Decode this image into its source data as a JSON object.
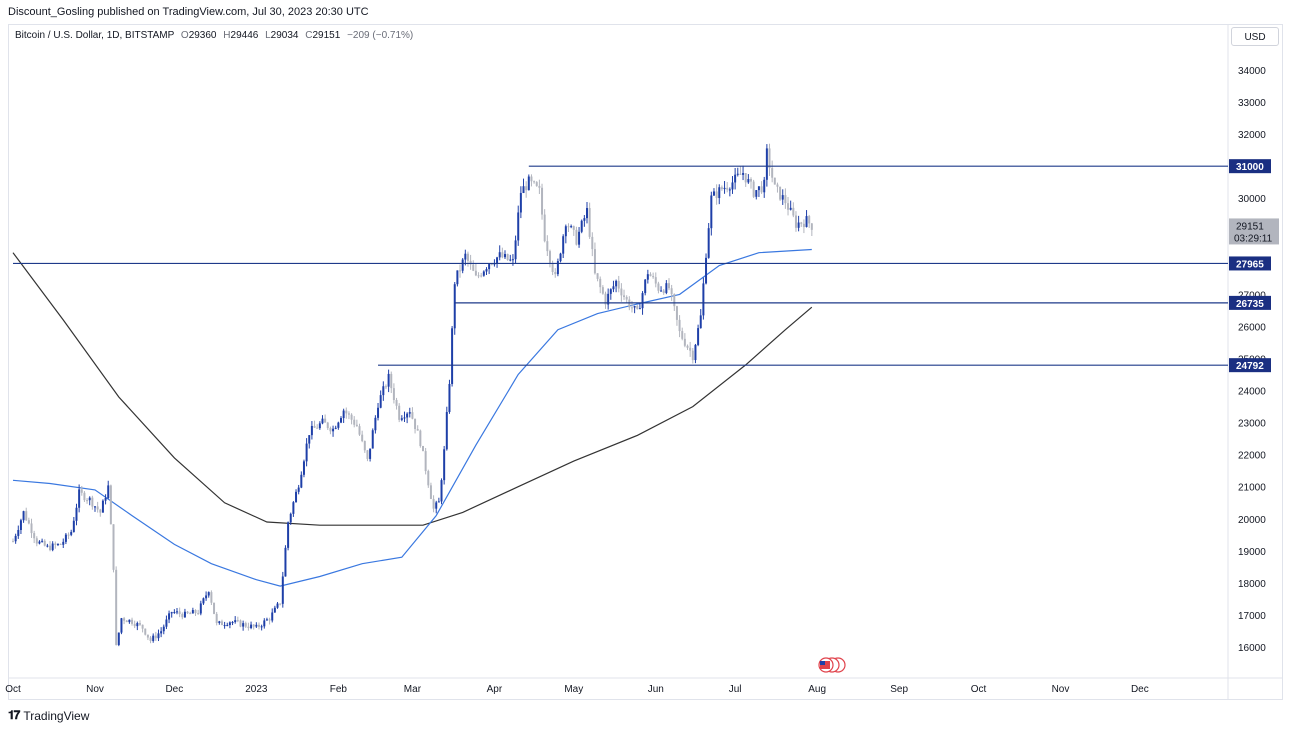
{
  "header": {
    "publisher_text": "Discount_Gosling published on TradingView.com, Jul 30, 2023 20:30 UTC"
  },
  "symbol": {
    "name": "Bitcoin / U.S. Dollar, 1D, BITSTAMP",
    "open_label": "O",
    "open": "29360",
    "high_label": "H",
    "high": "29446",
    "low_label": "L",
    "low": "29034",
    "close_label": "C",
    "close": "29151",
    "change": "−209 (−0.71%)"
  },
  "currency": "USD",
  "footer": {
    "logo_text": "TradingView"
  },
  "colors": {
    "up": "#1e3fa8",
    "down": "#b2b5be",
    "ma_short": "#3a78e0",
    "ma_long": "#333333",
    "level_line": "#1e3a8a",
    "level_label_bg": "#1a2f82"
  },
  "chart_data": {
    "type": "candlestick",
    "symbol": "BTCUSD",
    "timeframe": "1D",
    "y_axis": {
      "ticks": [
        16000,
        17000,
        18000,
        19000,
        20000,
        21000,
        22000,
        23000,
        24000,
        25000,
        26000,
        27000,
        28000,
        29000,
        30000,
        31000,
        32000,
        33000,
        34000
      ],
      "tick_labels": [
        "16000",
        "17000",
        "18000",
        "19000",
        "20000",
        "21000",
        "22000",
        "23000",
        "24000",
        "25000",
        "26000",
        "27000",
        "28000",
        "29000",
        "30000",
        "31000",
        "32000",
        "33000",
        "34000"
      ],
      "range": [
        15300,
        35000
      ]
    },
    "x_axis": {
      "labels": [
        "Oct",
        "Nov",
        "Dec",
        "2023",
        "Feb",
        "Mar",
        "Apr",
        "May",
        "Jun",
        "Jul",
        "Aug",
        "Sep",
        "Oct",
        "Nov",
        "Dec"
      ],
      "dates": [
        "2022-10-01",
        "2022-11-01",
        "2022-12-01",
        "2023-01-01",
        "2023-02-01",
        "2023-03-01",
        "2023-04-01",
        "2023-05-01",
        "2023-06-01",
        "2023-07-01",
        "2023-08-01",
        "2023-09-01",
        "2023-10-01",
        "2023-11-01",
        "2023-12-01"
      ]
    },
    "price_levels": [
      {
        "value": 31000,
        "label": "31000",
        "start": "2023-04-14"
      },
      {
        "value": 27965,
        "label": "27965",
        "start": "2022-10-01"
      },
      {
        "value": 26735,
        "label": "26735",
        "start": "2023-03-17"
      },
      {
        "value": 24792,
        "label": "24792",
        "start": "2023-02-16"
      }
    ],
    "last_price": {
      "value": 29151,
      "label": "29151",
      "countdown": "03:29:11"
    },
    "closes": [
      [
        "2022-10-01",
        19300
      ],
      [
        "2022-10-05",
        20200
      ],
      [
        "2022-10-10",
        19300
      ],
      [
        "2022-10-14",
        19100
      ],
      [
        "2022-10-19",
        19200
      ],
      [
        "2022-10-23",
        19600
      ],
      [
        "2022-10-26",
        20800
      ],
      [
        "2022-10-30",
        20600
      ],
      [
        "2022-11-03",
        20200
      ],
      [
        "2022-11-06",
        21000
      ],
      [
        "2022-11-08",
        18500
      ],
      [
        "2022-11-09",
        16000
      ],
      [
        "2022-11-11",
        16900
      ],
      [
        "2022-11-15",
        16800
      ],
      [
        "2022-11-19",
        16600
      ],
      [
        "2022-11-22",
        16200
      ],
      [
        "2022-11-26",
        16500
      ],
      [
        "2022-11-30",
        17100
      ],
      [
        "2022-12-05",
        17000
      ],
      [
        "2022-12-10",
        17100
      ],
      [
        "2022-12-14",
        17800
      ],
      [
        "2022-12-17",
        16700
      ],
      [
        "2022-12-22",
        16800
      ],
      [
        "2022-12-27",
        16700
      ],
      [
        "2023-01-01",
        16600
      ],
      [
        "2023-01-06",
        16900
      ],
      [
        "2023-01-10",
        17400
      ],
      [
        "2023-01-13",
        19900
      ],
      [
        "2023-01-17",
        21100
      ],
      [
        "2023-01-21",
        22700
      ],
      [
        "2023-01-26",
        23000
      ],
      [
        "2023-01-30",
        22800
      ],
      [
        "2023-02-03",
        23400
      ],
      [
        "2023-02-08",
        22900
      ],
      [
        "2023-02-12",
        21800
      ],
      [
        "2023-02-16",
        23600
      ],
      [
        "2023-02-20",
        24400
      ],
      [
        "2023-02-24",
        23200
      ],
      [
        "2023-02-28",
        23400
      ],
      [
        "2023-03-04",
        22400
      ],
      [
        "2023-03-09",
        20300
      ],
      [
        "2023-03-11",
        20500
      ],
      [
        "2023-03-13",
        22100
      ],
      [
        "2023-03-15",
        24300
      ],
      [
        "2023-03-17",
        27400
      ],
      [
        "2023-03-21",
        28200
      ],
      [
        "2023-03-25",
        27500
      ],
      [
        "2023-03-30",
        28000
      ],
      [
        "2023-04-03",
        28200
      ],
      [
        "2023-04-08",
        28000
      ],
      [
        "2023-04-11",
        30200
      ],
      [
        "2023-04-14",
        30500
      ],
      [
        "2023-04-18",
        30200
      ],
      [
        "2023-04-20",
        28800
      ],
      [
        "2023-04-24",
        27500
      ],
      [
        "2023-04-28",
        29300
      ],
      [
        "2023-05-02",
        28700
      ],
      [
        "2023-05-06",
        29600
      ],
      [
        "2023-05-09",
        27600
      ],
      [
        "2023-05-13",
        26800
      ],
      [
        "2023-05-17",
        27400
      ],
      [
        "2023-05-21",
        26800
      ],
      [
        "2023-05-25",
        26400
      ],
      [
        "2023-05-29",
        27700
      ],
      [
        "2023-06-02",
        27200
      ],
      [
        "2023-06-06",
        27200
      ],
      [
        "2023-06-10",
        25800
      ],
      [
        "2023-06-15",
        25100
      ],
      [
        "2023-06-18",
        26300
      ],
      [
        "2023-06-20",
        28300
      ],
      [
        "2023-06-22",
        30000
      ],
      [
        "2023-06-26",
        30300
      ],
      [
        "2023-06-30",
        30500
      ],
      [
        "2023-07-04",
        30800
      ],
      [
        "2023-07-08",
        30200
      ],
      [
        "2023-07-12",
        30400
      ],
      [
        "2023-07-13",
        31400
      ],
      [
        "2023-07-16",
        30300
      ],
      [
        "2023-07-20",
        29900
      ],
      [
        "2023-07-24",
        29200
      ],
      [
        "2023-07-28",
        29300
      ],
      [
        "2023-07-30",
        29151
      ]
    ],
    "ma_short": [
      [
        "2022-10-01",
        21200
      ],
      [
        "2022-10-15",
        21100
      ],
      [
        "2022-11-01",
        20900
      ],
      [
        "2022-11-15",
        20100
      ],
      [
        "2022-12-01",
        19200
      ],
      [
        "2022-12-15",
        18600
      ],
      [
        "2023-01-01",
        18100
      ],
      [
        "2023-01-10",
        17900
      ],
      [
        "2023-01-25",
        18200
      ],
      [
        "2023-02-10",
        18600
      ],
      [
        "2023-02-25",
        18800
      ],
      [
        "2023-03-10",
        20100
      ],
      [
        "2023-03-25",
        22300
      ],
      [
        "2023-04-10",
        24500
      ],
      [
        "2023-04-25",
        25900
      ],
      [
        "2023-05-10",
        26400
      ],
      [
        "2023-05-25",
        26700
      ],
      [
        "2023-06-10",
        27000
      ],
      [
        "2023-06-25",
        27900
      ],
      [
        "2023-07-10",
        28300
      ],
      [
        "2023-07-30",
        28400
      ]
    ],
    "ma_long": [
      [
        "2022-10-01",
        28300
      ],
      [
        "2022-10-20",
        26200
      ],
      [
        "2022-11-10",
        23800
      ],
      [
        "2022-12-01",
        21900
      ],
      [
        "2022-12-20",
        20500
      ],
      [
        "2023-01-05",
        19900
      ],
      [
        "2023-01-25",
        19800
      ],
      [
        "2023-02-15",
        19800
      ],
      [
        "2023-03-05",
        19800
      ],
      [
        "2023-03-20",
        20200
      ],
      [
        "2023-04-10",
        21000
      ],
      [
        "2023-05-01",
        21800
      ],
      [
        "2023-05-25",
        22600
      ],
      [
        "2023-06-15",
        23500
      ],
      [
        "2023-07-05",
        24800
      ],
      [
        "2023-07-20",
        25900
      ],
      [
        "2023-07-30",
        26600
      ]
    ]
  }
}
